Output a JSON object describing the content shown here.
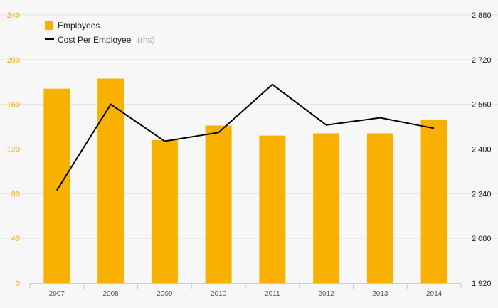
{
  "chart_data": {
    "type": "bar",
    "categories": [
      "2007",
      "2008",
      "2009",
      "2010",
      "2011",
      "2012",
      "2013",
      "2014"
    ],
    "series": [
      {
        "name": "Employees",
        "type": "bar",
        "axis": "left",
        "values": [
          174,
          183,
          128,
          141,
          132,
          134,
          134,
          146
        ]
      },
      {
        "name": "Cost Per Employee",
        "name_suffix": "(rhs)",
        "type": "line",
        "axis": "right",
        "values": [
          2252,
          2560,
          2428,
          2459,
          2631,
          2486,
          2512,
          2474
        ]
      }
    ],
    "left_axis": {
      "min": 0,
      "max": 240,
      "ticks": [
        0,
        40,
        80,
        120,
        160,
        200,
        240
      ],
      "tick_labels": [
        "0",
        "40",
        "80",
        "120",
        "160",
        "200",
        "240"
      ]
    },
    "right_axis": {
      "min": 1920,
      "max": 2880,
      "ticks": [
        1920,
        2080,
        2240,
        2400,
        2560,
        2720,
        2880
      ],
      "tick_labels": [
        "1 920",
        "2 080",
        "2 240",
        "2 400",
        "2 560",
        "2 720",
        "2 880"
      ]
    },
    "title": "",
    "xlabel": "",
    "ylabel": "",
    "grid": true,
    "legend_position": "top-left",
    "colors": {
      "bar": "#f8b100",
      "line": "#000000",
      "left_axis_text": "#f8b100",
      "background": "#f7f7f7",
      "grid": "#e4e4e4"
    }
  }
}
